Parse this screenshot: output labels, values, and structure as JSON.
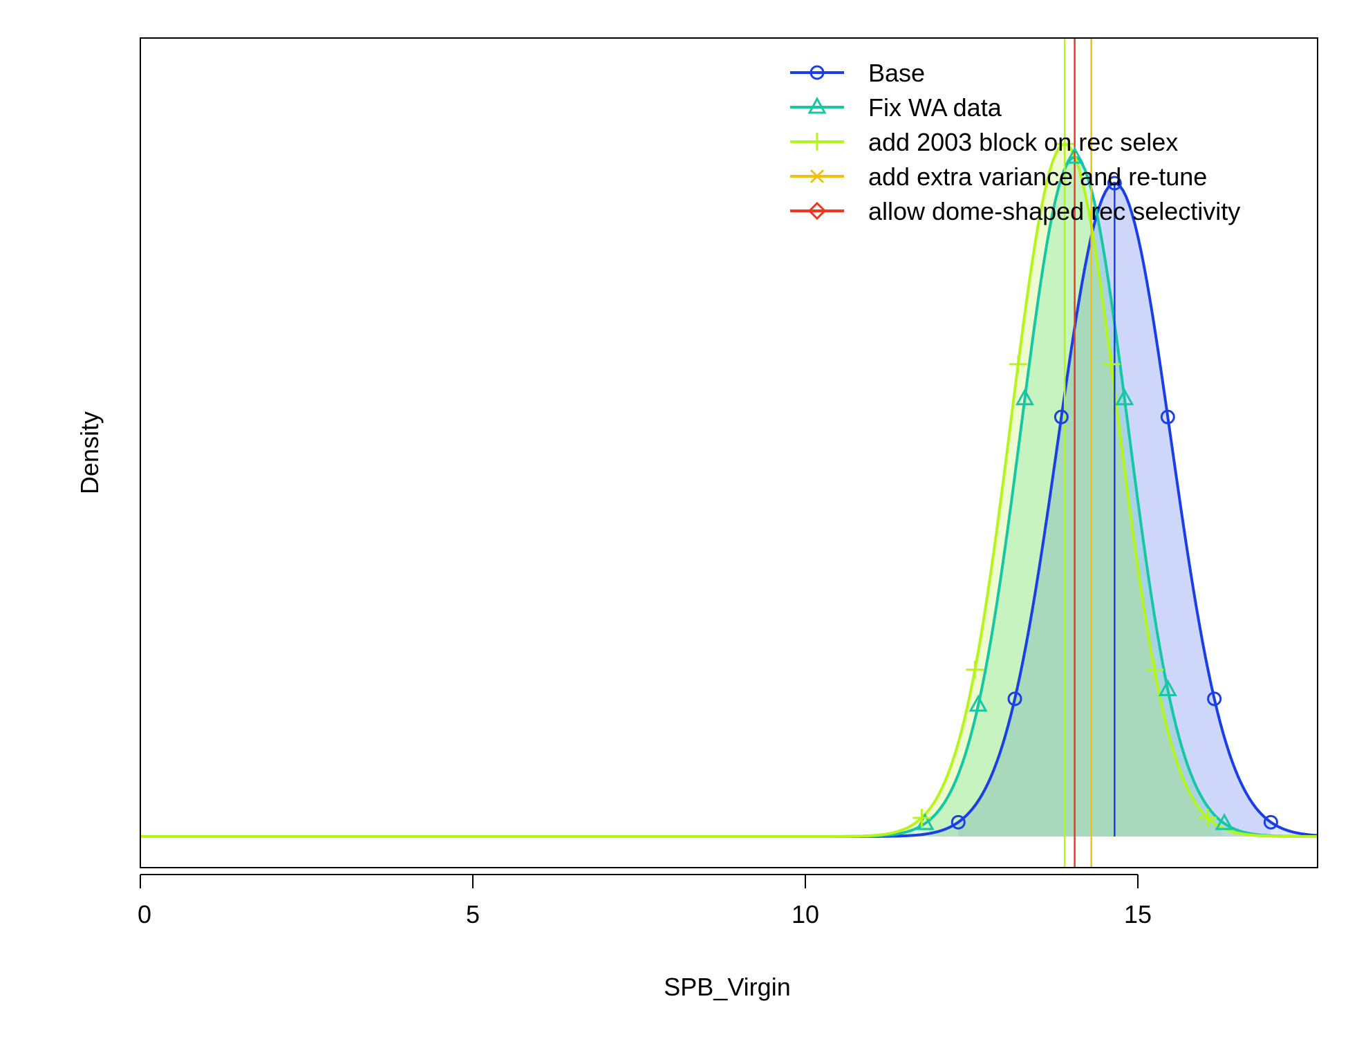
{
  "chart_data": {
    "type": "line",
    "title": "",
    "xlabel": "SPB_Virgin",
    "ylabel": "Density",
    "xlim": [
      0,
      17.7
    ],
    "x_ticks": [
      "0",
      "5",
      "10",
      "15"
    ],
    "x_tick_values": [
      0,
      5,
      10,
      15
    ],
    "y_ticks_shown": false,
    "grid": false,
    "legend_position": "top-right",
    "series": [
      {
        "name": "Base",
        "color": "#1a3fe6",
        "marker": "circle",
        "mean": 14.65,
        "sd": 0.85,
        "peak_density": 1.0,
        "estimate_line": 14.65,
        "shaded_interval": [
          12.3,
          17.0
        ],
        "marker_x": [
          12.3,
          13.15,
          13.85,
          14.65,
          15.45,
          16.15,
          17.0
        ]
      },
      {
        "name": "Fix WA data",
        "color": "#17c6a3",
        "marker": "triangle",
        "mean": 14.05,
        "sd": 0.8,
        "peak_density": 1.04,
        "estimate_line": null,
        "shaded_interval": [
          11.85,
          16.25
        ],
        "marker_x": [
          11.8,
          12.6,
          13.3,
          14.05,
          14.8,
          15.45,
          16.3
        ]
      },
      {
        "name": "add 2003 block on rec selex",
        "color": "#b5f51c",
        "marker": "plus",
        "mean": 13.9,
        "sd": 0.8,
        "peak_density": 1.06,
        "estimate_line": 13.9,
        "shaded_interval": [
          11.75,
          16.1
        ],
        "marker_x": [
          11.75,
          12.55,
          13.2,
          13.9,
          14.6,
          15.25,
          16.05
        ]
      },
      {
        "name": "add extra variance and re-tune",
        "color": "#f2c10c",
        "marker": "x",
        "estimate_line": 14.3
      },
      {
        "name": "allow dome-shaped rec selectivity",
        "color": "#f0361d",
        "marker": "diamond",
        "estimate_line": 14.05
      }
    ]
  }
}
